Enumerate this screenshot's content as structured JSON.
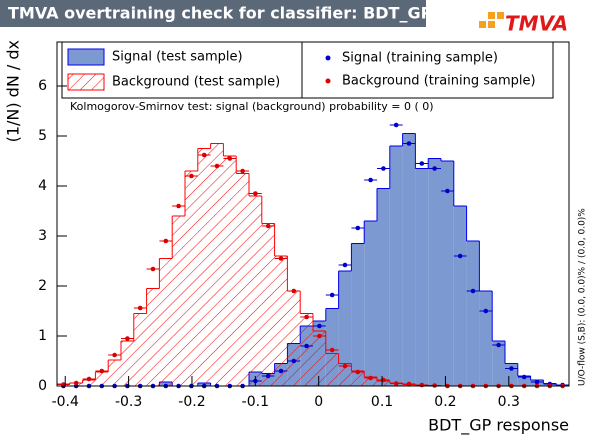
{
  "chart_data": {
    "type": "histogram",
    "title": "TMVA overtraining check for classifier: BDT_GP",
    "logo": "TMVA",
    "x_label": "BDT_GP response",
    "y_label": "(1/N) dN / dx",
    "annotation": "Kolmogorov-Smirnov test: signal (background) probability =     0 (    0)",
    "side_note": "U/O-flow (S,B): (0.0, 0.0)% / (0.0, 0.0)%",
    "bins": [
      -0.413,
      -0.3928,
      -0.3726,
      -0.3524,
      -0.3322,
      -0.312,
      -0.2918,
      -0.2716,
      -0.2514,
      -0.2312,
      -0.211,
      -0.1908,
      -0.1706,
      -0.1504,
      -0.1302,
      -0.11,
      -0.0898,
      -0.0696,
      -0.0494,
      -0.0292,
      -0.009,
      0.0112,
      0.0314,
      0.0516,
      0.0718,
      0.092,
      0.1122,
      0.1324,
      0.1526,
      0.1728,
      0.193,
      0.2132,
      0.2334,
      0.2536,
      0.2738,
      0.294,
      0.3142,
      0.3344,
      0.3546,
      0.3748,
      0.395
    ],
    "series": [
      {
        "name": "Signal (test sample)",
        "color": "#0000ee",
        "fill": "#7d99d1",
        "style": "fill",
        "values": [
          0,
          0,
          0,
          0,
          0,
          0,
          0,
          0,
          0.08,
          0,
          0,
          0.06,
          0,
          0,
          0,
          0.28,
          0.25,
          0.45,
          0.85,
          1.2,
          1.3,
          1.55,
          2.3,
          2.85,
          3.3,
          3.95,
          4.8,
          5.05,
          4.35,
          4.55,
          4.5,
          3.6,
          2.9,
          1.9,
          0.9,
          0.45,
          0.2,
          0.12,
          0.05,
          0.02
        ]
      },
      {
        "name": "Background (test sample)",
        "color": "#ff0000",
        "style": "hatch",
        "values": [
          0.04,
          0.06,
          0.12,
          0.28,
          0.52,
          0.9,
          1.45,
          1.95,
          2.55,
          3.4,
          4.3,
          4.75,
          4.85,
          4.6,
          4.25,
          3.8,
          3.25,
          2.6,
          1.9,
          1.45,
          1.1,
          0.65,
          0.45,
          0.3,
          0.18,
          0.1,
          0.06,
          0.03,
          0.02,
          0,
          0,
          0,
          0,
          0,
          0,
          0,
          0,
          0,
          0,
          0
        ]
      },
      {
        "name": "Signal (training sample)",
        "color": "#0000cc",
        "style": "points",
        "values": [
          0,
          0,
          0,
          0,
          0,
          0,
          0,
          0,
          0,
          0,
          0,
          0,
          0,
          0,
          0,
          0.1,
          0.2,
          0.3,
          0.5,
          0.8,
          1.2,
          1.82,
          2.42,
          3.16,
          4.12,
          4.35,
          5.22,
          4.85,
          4.45,
          4.35,
          3.9,
          2.6,
          1.9,
          1.5,
          0.82,
          0.35,
          0.18,
          0.08,
          0.04,
          0.02
        ]
      },
      {
        "name": "Background (training sample)",
        "color": "#dd0000",
        "style": "points",
        "values": [
          0.03,
          0.06,
          0.14,
          0.3,
          0.62,
          0.95,
          1.56,
          2.34,
          2.9,
          3.6,
          4.2,
          4.62,
          4.4,
          4.55,
          4.3,
          3.85,
          3.2,
          2.55,
          1.9,
          1.38,
          1.0,
          0.72,
          0.4,
          0.28,
          0.16,
          0.12,
          0.05,
          0.04,
          0.02,
          0.01,
          0,
          0,
          0,
          0,
          0,
          0,
          0,
          0,
          0,
          0
        ]
      }
    ],
    "xlim": [
      -0.413,
      0.395
    ],
    "xticks": [
      -0.4,
      -0.3,
      -0.2,
      -0.1,
      0,
      0.1,
      0.2,
      0.3
    ],
    "ylim": [
      0,
      6.88
    ],
    "yticks": [
      0,
      1,
      2,
      3,
      4,
      5,
      6
    ]
  }
}
